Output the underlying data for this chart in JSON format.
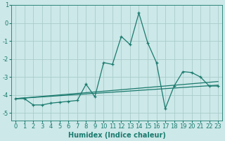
{
  "xlabel": "Humidex (Indice chaleur)",
  "bg_color": "#cce8e8",
  "grid_color": "#aacccc",
  "line_color": "#1a7a6e",
  "xlim": [
    -0.5,
    23.5
  ],
  "ylim": [
    -5.4,
    1.0
  ],
  "yticks": [
    1,
    0,
    -1,
    -2,
    -3,
    -4,
    -5
  ],
  "xticks": [
    0,
    1,
    2,
    3,
    4,
    5,
    6,
    7,
    8,
    9,
    10,
    11,
    12,
    13,
    14,
    15,
    16,
    17,
    18,
    19,
    20,
    21,
    22,
    23
  ],
  "series1_x": [
    0,
    1,
    2,
    3,
    4,
    5,
    6,
    7,
    8,
    9,
    10,
    11,
    12,
    13,
    14,
    15,
    16,
    17,
    18,
    19,
    20,
    21,
    22,
    23
  ],
  "series1_y": [
    -4.2,
    -4.2,
    -4.55,
    -4.55,
    -4.45,
    -4.4,
    -4.35,
    -4.3,
    -3.4,
    -4.1,
    -2.2,
    -2.3,
    -0.75,
    -1.2,
    0.55,
    -1.1,
    -2.2,
    -4.75,
    -3.5,
    -2.7,
    -2.75,
    -3.0,
    -3.5,
    -3.5
  ],
  "trend1_x": [
    0,
    23
  ],
  "trend1_y": [
    -4.2,
    -3.45
  ],
  "trend2_x": [
    0,
    23
  ],
  "trend2_y": [
    -4.2,
    -3.25
  ],
  "tick_fontsize": 6.0,
  "xlabel_fontsize": 7.0
}
